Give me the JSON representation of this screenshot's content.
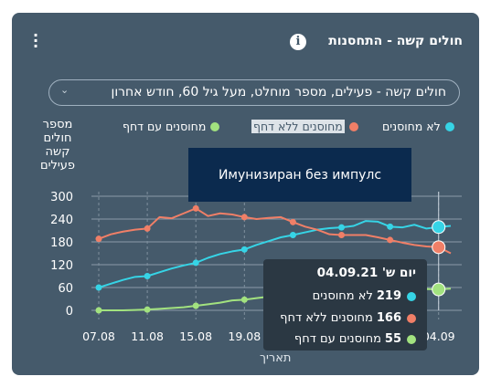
{
  "card": {
    "title": "חולים קשה - התחסנות",
    "info_icon": "info-icon",
    "menu_icon": "kebab-menu-icon"
  },
  "dropdown": {
    "selected": "חולים קשה - פעילים, מספר מוחלט, מעל גיל 60, חודש אחרון",
    "icon": "chevron-down-icon"
  },
  "tooltip_dark": {
    "text": "Имунизиран без импулс"
  },
  "tooltip": {
    "title": "יום ש' 04.09.21",
    "rows": [
      {
        "value": "219",
        "label": "לא מחוסנים",
        "color": "#36d4e6"
      },
      {
        "value": "166",
        "label": "מחוסנים ללא דחף",
        "color": "#f07f67"
      },
      {
        "value": "55",
        "label": "מחוסנים עם דחף",
        "color": "#a2e27f"
      }
    ]
  },
  "chart_data": {
    "type": "line",
    "title": "",
    "xlabel": "תאריך",
    "ylabel": "מספר חולים קשה פעילים",
    "ylim": [
      0,
      300
    ],
    "yticks": [
      0,
      60,
      120,
      180,
      240,
      300
    ],
    "grid": true,
    "legend_position": "top",
    "x": [
      "07.08",
      "08.08",
      "09.08",
      "10.08",
      "11.08",
      "12.08",
      "13.08",
      "14.08",
      "15.08",
      "16.08",
      "17.08",
      "18.08",
      "19.08",
      "20.08",
      "21.08",
      "22.08",
      "23.08",
      "24.08",
      "25.08",
      "26.08",
      "27.08",
      "28.08",
      "29.08",
      "30.08",
      "31.08",
      "01.09",
      "02.09",
      "03.09",
      "04.09",
      "05.09"
    ],
    "xtick_labels": [
      "07.08",
      "11.08",
      "15.08",
      "19.08",
      "04.09"
    ],
    "xtick_positions": [
      "07.08",
      "11.08",
      "15.08",
      "19.08",
      "04.09"
    ],
    "series": [
      {
        "name": "לא מחוסנים",
        "color": "#36d4e6",
        "values": [
          60,
          70,
          80,
          88,
          90,
          100,
          110,
          118,
          125,
          138,
          148,
          155,
          160,
          172,
          182,
          192,
          198,
          205,
          212,
          216,
          218,
          222,
          235,
          233,
          220,
          218,
          225,
          215,
          219,
          222
        ]
      },
      {
        "name": "מחוסנים ללא דחף",
        "color": "#f07f67",
        "values": [
          188,
          200,
          207,
          212,
          215,
          245,
          242,
          255,
          268,
          248,
          255,
          252,
          245,
          240,
          243,
          245,
          232,
          220,
          212,
          200,
          198,
          198,
          198,
          192,
          185,
          178,
          172,
          168,
          166,
          150
        ]
      },
      {
        "name": "מחוסנים עם דחף",
        "color": "#a2e27f",
        "values": [
          0,
          0,
          0,
          1,
          2,
          4,
          6,
          8,
          12,
          16,
          20,
          26,
          28,
          32,
          36,
          38,
          40,
          42,
          43,
          44,
          46,
          48,
          50,
          52,
          53,
          54,
          55,
          56,
          55,
          57
        ]
      }
    ],
    "highlight": {
      "x": "04.09",
      "values": [
        219,
        166,
        55
      ]
    }
  }
}
